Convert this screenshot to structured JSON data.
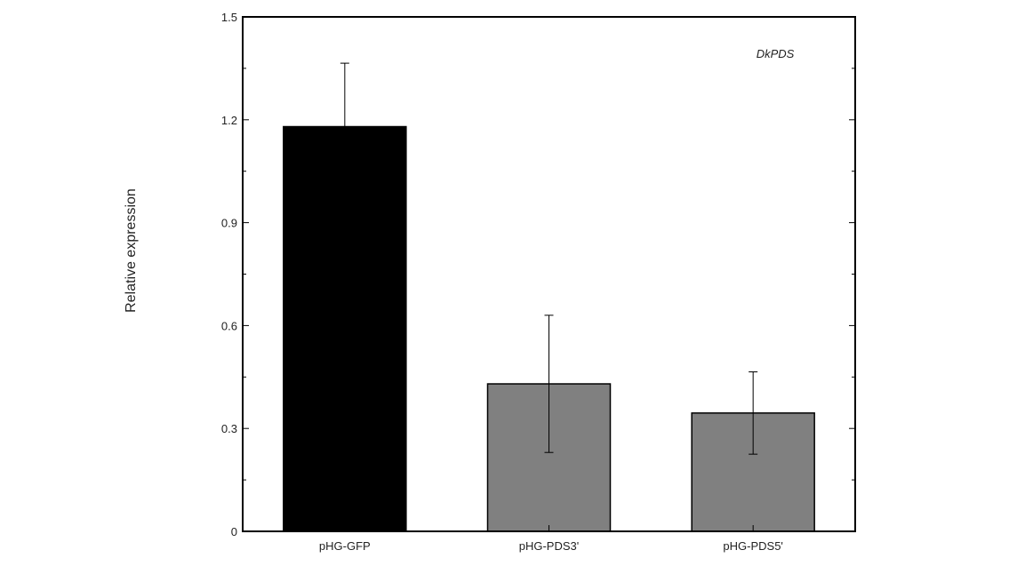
{
  "chart_data": {
    "type": "bar",
    "title": "",
    "annotation": "DkPDS",
    "xlabel": "",
    "ylabel": "Relative expression",
    "categories": [
      "pHG-GFP",
      "pHG-PDS3'",
      "pHG-PDS5'"
    ],
    "values": [
      1.18,
      0.43,
      0.345
    ],
    "error_upper": [
      1.365,
      0.63,
      0.465
    ],
    "error_lower": [
      1.18,
      0.23,
      0.225
    ],
    "bar_colors": [
      "#000000",
      "#808080",
      "#808080"
    ],
    "ylim": [
      0,
      1.5
    ],
    "yticks": [
      0,
      0.3,
      0.6,
      0.9,
      1.2,
      1.5
    ],
    "ytick_labels": [
      "0",
      "0.3",
      "0.6",
      "0.9",
      "1.2",
      "1.5"
    ],
    "grid": false,
    "legend": "none"
  }
}
